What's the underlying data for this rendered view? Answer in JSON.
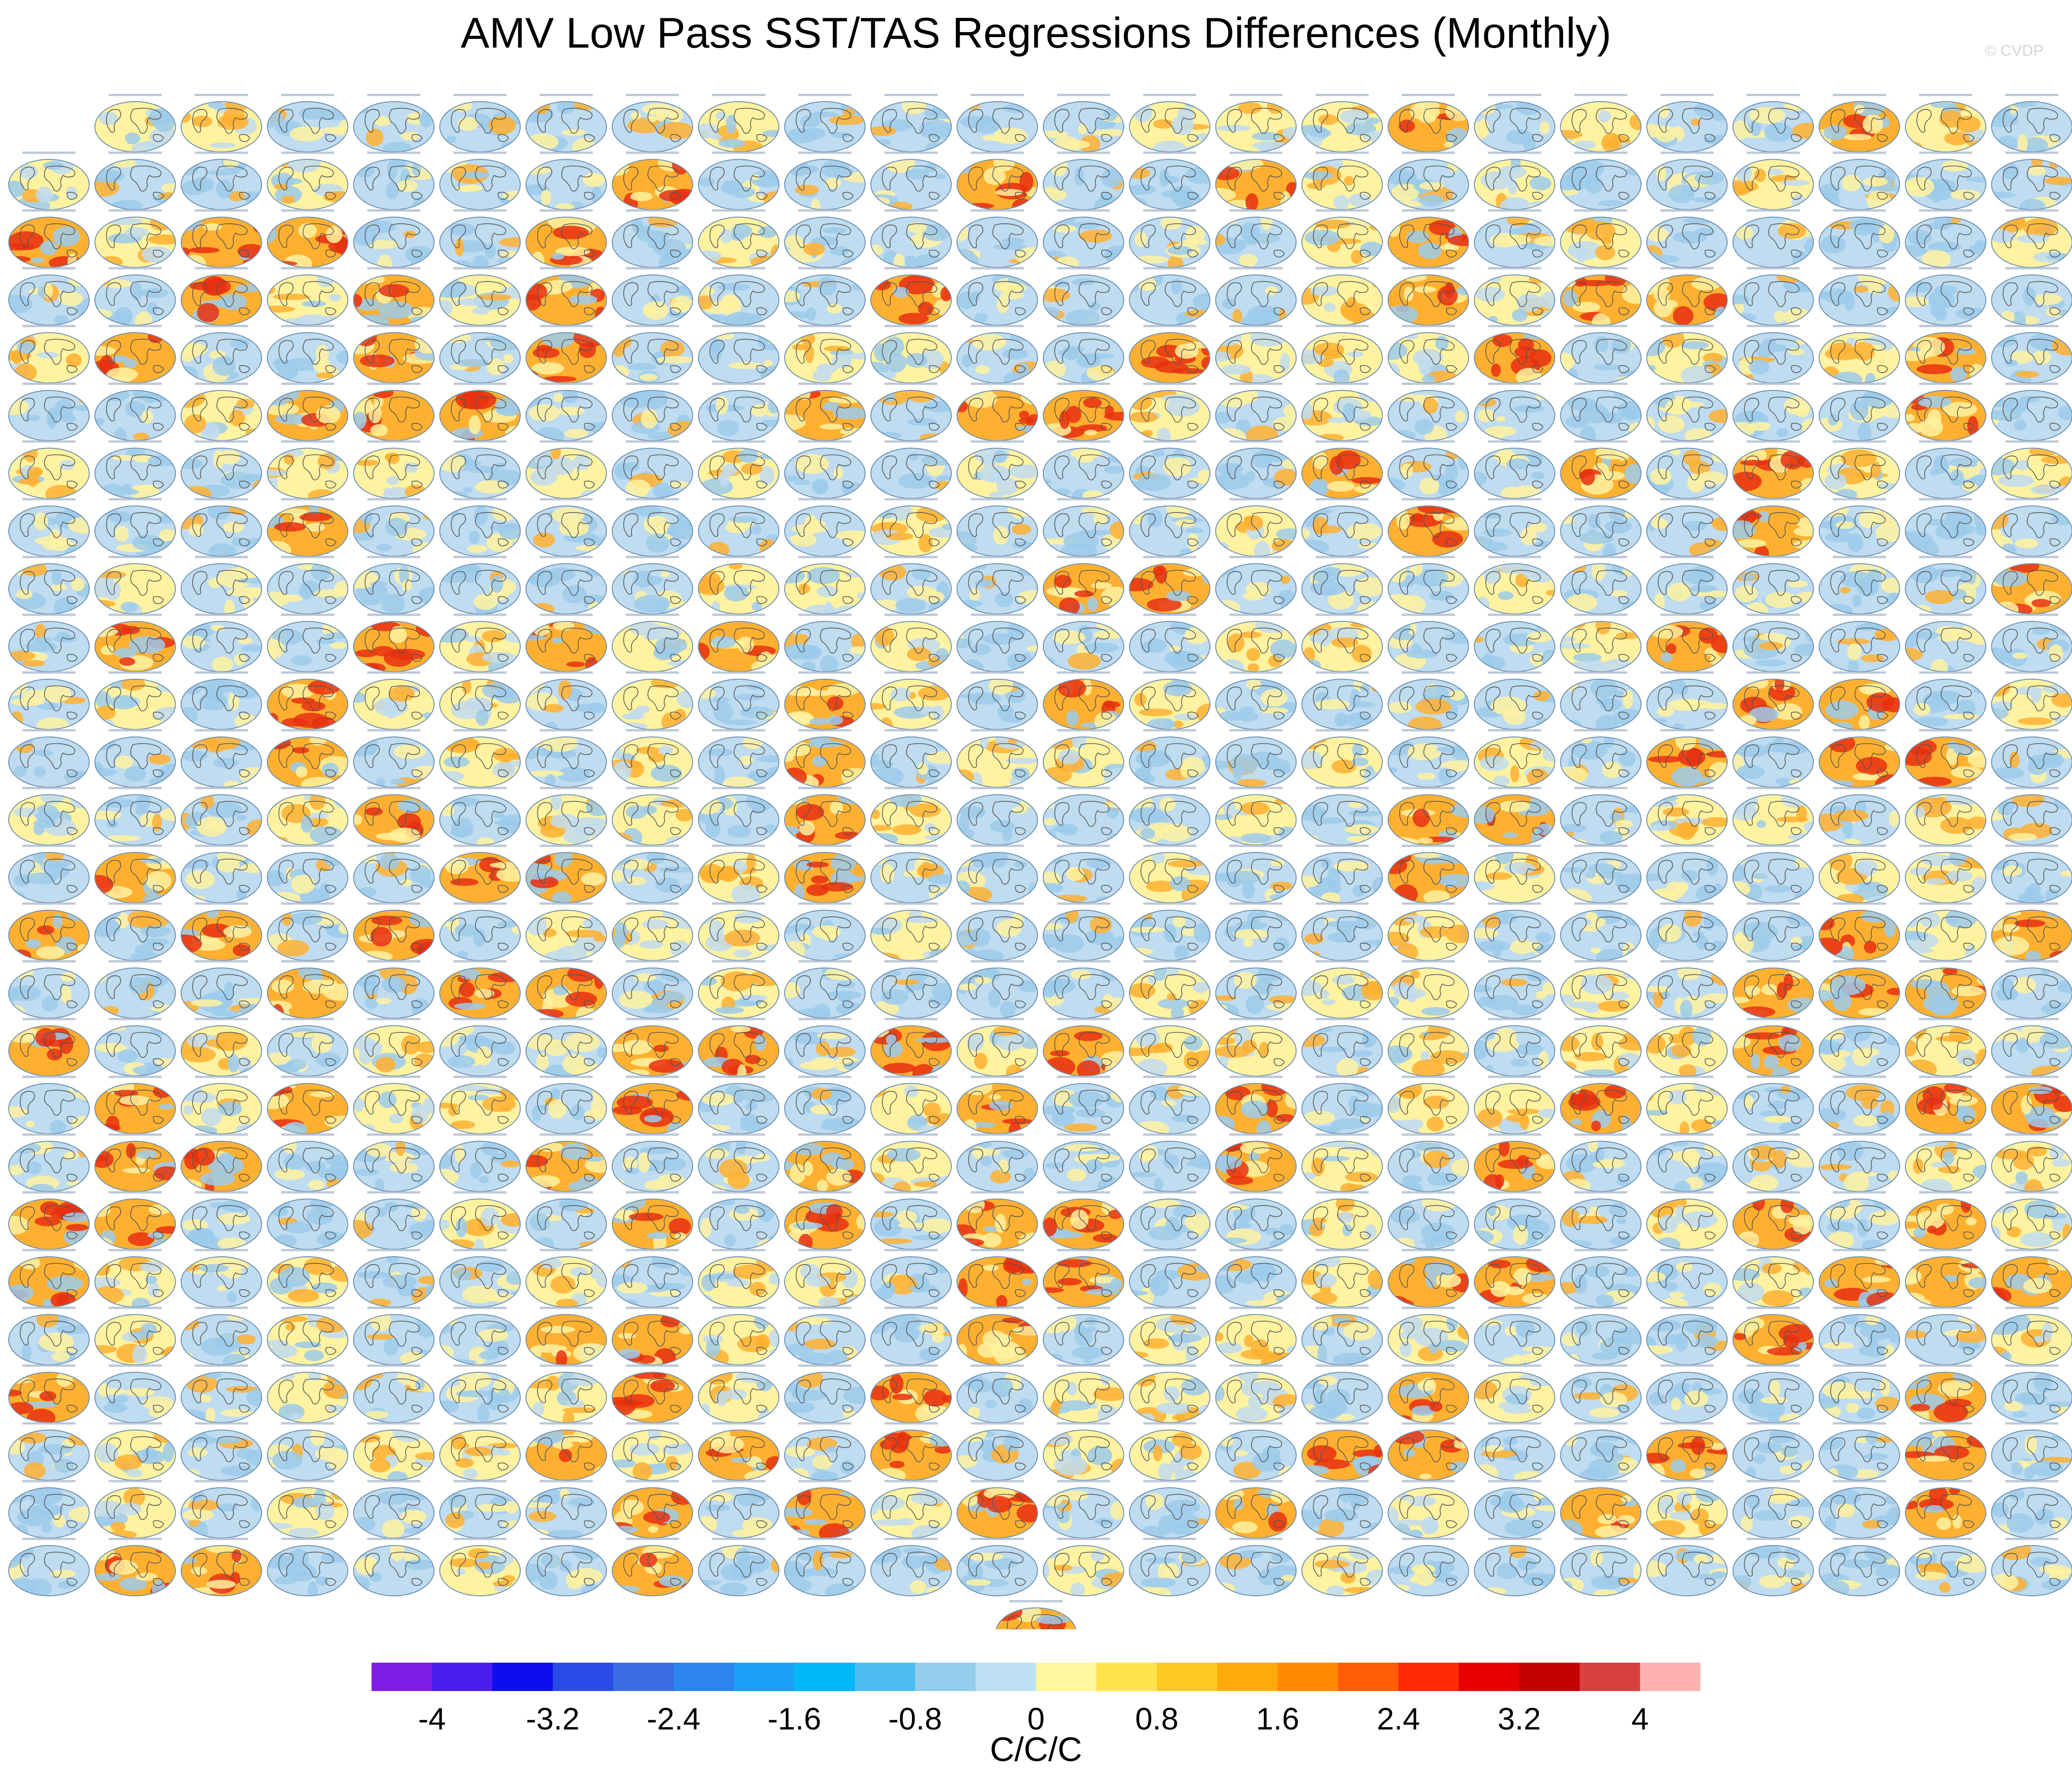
{
  "title": "AMV Low Pass SST/TAS Regressions Differences (Monthly)",
  "credit": "© CVDP",
  "grid": {
    "rows": 26,
    "columns": 24,
    "first_row_starts_at_column": 1,
    "extra_panels_last_row": 1
  },
  "colorbar": {
    "units": "C/C/C",
    "colors": [
      "#7d1de6",
      "#4b1cf0",
      "#0d0df0",
      "#2a4be8",
      "#3a6ce4",
      "#2b84ef",
      "#1aa0f5",
      "#00b8f7",
      "#4dbdf0",
      "#94cdec",
      "#bde0f3",
      "#fff7a0",
      "#ffe34a",
      "#ffc823",
      "#ffaa0a",
      "#ff8a00",
      "#ff5d08",
      "#ff2a06",
      "#e60000",
      "#c40000",
      "#d84040",
      "#ffb0b0"
    ],
    "tick_labels": [
      "-4",
      "-3.2",
      "-2.4",
      "-1.6",
      "-0.8",
      "0",
      "0.8",
      "1.6",
      "2.4",
      "3.2",
      "4"
    ]
  },
  "colors": {
    "ocean_blue_light": "#bfdcf0",
    "ocean_blue": "#9ccbeb",
    "warm_yellow": "#fff2a0",
    "warm_orange": "#ffb030",
    "warm_red": "#e83010",
    "coastline": "#555555"
  }
}
